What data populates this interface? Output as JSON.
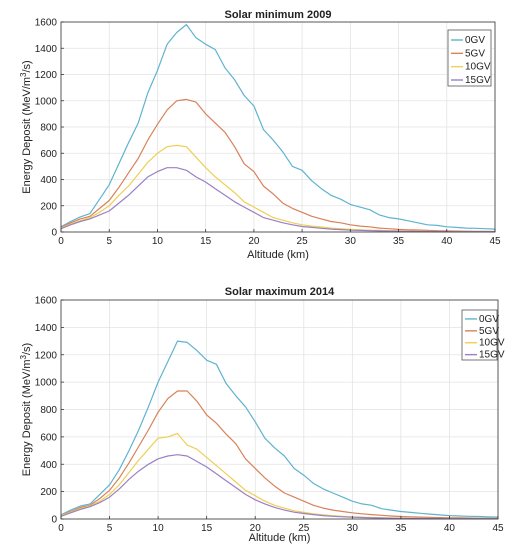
{
  "chart_data": [
    {
      "type": "line",
      "title": "Solar minimum 2009",
      "xlabel": "Altitude (km)",
      "ylabel": "Energy Deposit (MeV/m",
      "ylabel_sup": "3",
      "ylabel_tail": "/s)",
      "xlim": [
        0,
        45
      ],
      "ylim": [
        0,
        1600
      ],
      "xticks": [
        0,
        5,
        10,
        15,
        20,
        25,
        30,
        35,
        40,
        45
      ],
      "yticks": [
        0,
        200,
        400,
        600,
        800,
        1000,
        1200,
        1400,
        1600
      ],
      "grid": true,
      "legend_position": "top-right",
      "x": [
        0,
        1,
        2,
        3,
        4,
        5,
        6,
        7,
        8,
        9,
        10,
        11,
        12,
        13,
        14,
        15,
        16,
        17,
        18,
        19,
        20,
        21,
        22,
        23,
        24,
        25,
        26,
        27,
        28,
        29,
        30,
        31,
        32,
        33,
        34,
        35,
        36,
        37,
        38,
        39,
        40,
        41,
        42,
        43,
        44,
        45
      ],
      "series": [
        {
          "name": "0GV",
          "color": "#5fb3cf",
          "values": [
            40,
            80,
            115,
            140,
            250,
            360,
            520,
            680,
            830,
            1060,
            1230,
            1430,
            1520,
            1580,
            1480,
            1430,
            1390,
            1250,
            1160,
            1040,
            960,
            780,
            700,
            610,
            500,
            470,
            390,
            330,
            280,
            250,
            210,
            190,
            170,
            130,
            110,
            100,
            85,
            70,
            55,
            50,
            40,
            35,
            30,
            28,
            25,
            22
          ]
        },
        {
          "name": "5GV",
          "color": "#d8825a",
          "values": [
            35,
            70,
            100,
            120,
            180,
            240,
            340,
            450,
            560,
            700,
            820,
            930,
            1000,
            1010,
            990,
            900,
            830,
            760,
            650,
            520,
            460,
            350,
            290,
            220,
            180,
            150,
            120,
            100,
            80,
            70,
            55,
            45,
            40,
            30,
            25,
            20,
            17,
            15,
            12,
            10,
            8,
            7,
            6,
            5,
            5,
            4
          ]
        },
        {
          "name": "10GV",
          "color": "#efcf54",
          "values": [
            30,
            60,
            85,
            110,
            150,
            200,
            280,
            350,
            440,
            530,
            600,
            650,
            660,
            650,
            570,
            490,
            420,
            360,
            300,
            230,
            190,
            150,
            110,
            90,
            70,
            55,
            45,
            38,
            30,
            25,
            20,
            17,
            14,
            12,
            10,
            8,
            7,
            6,
            5,
            4,
            4,
            3,
            3,
            3,
            2,
            2
          ]
        },
        {
          "name": "15GV",
          "color": "#9a80c4",
          "values": [
            25,
            55,
            80,
            100,
            130,
            160,
            220,
            280,
            350,
            420,
            460,
            490,
            490,
            470,
            420,
            380,
            330,
            280,
            230,
            190,
            150,
            110,
            90,
            70,
            55,
            42,
            35,
            28,
            22,
            18,
            14,
            12,
            10,
            8,
            7,
            6,
            5,
            4,
            4,
            3,
            3,
            2,
            2,
            2,
            2,
            2
          ]
        }
      ]
    },
    {
      "type": "line",
      "title": "Solar maximum 2014",
      "xlabel": "Altitude (km)",
      "ylabel": "Energy Deposit (MeV/m",
      "ylabel_sup": "3",
      "ylabel_tail": "/s)",
      "xlim": [
        0,
        45
      ],
      "ylim": [
        0,
        1600
      ],
      "xticks": [
        0,
        5,
        10,
        15,
        20,
        25,
        30,
        35,
        40,
        45
      ],
      "yticks": [
        0,
        200,
        400,
        600,
        800,
        1000,
        1200,
        1400,
        1600
      ],
      "grid": true,
      "legend_position": "top-right",
      "x": [
        0,
        1,
        2,
        3,
        4,
        5,
        6,
        7,
        8,
        9,
        10,
        11,
        12,
        13,
        14,
        15,
        16,
        17,
        18,
        19,
        20,
        21,
        22,
        23,
        24,
        25,
        26,
        27,
        28,
        29,
        30,
        31,
        32,
        33,
        34,
        35,
        36,
        37,
        38,
        39,
        40,
        41,
        42,
        43,
        44,
        45
      ],
      "series": [
        {
          "name": "0GV",
          "color": "#5fb3cf",
          "values": [
            30,
            65,
            95,
            110,
            180,
            250,
            360,
            500,
            650,
            820,
            1000,
            1150,
            1300,
            1290,
            1230,
            1160,
            1130,
            990,
            900,
            820,
            710,
            590,
            520,
            460,
            370,
            320,
            260,
            220,
            190,
            160,
            130,
            110,
            100,
            75,
            65,
            55,
            48,
            42,
            36,
            30,
            25,
            22,
            20,
            18,
            15,
            14
          ]
        },
        {
          "name": "5GV",
          "color": "#d8825a",
          "values": [
            28,
            55,
            85,
            100,
            150,
            210,
            300,
            410,
            530,
            650,
            780,
            880,
            935,
            935,
            860,
            760,
            700,
            620,
            550,
            440,
            370,
            300,
            240,
            190,
            160,
            130,
            100,
            80,
            65,
            55,
            45,
            38,
            32,
            27,
            22,
            18,
            16,
            14,
            12,
            10,
            9,
            8,
            7,
            6,
            5,
            5
          ]
        },
        {
          "name": "10GV",
          "color": "#efcf54",
          "values": [
            25,
            50,
            75,
            95,
            130,
            180,
            250,
            340,
            430,
            510,
            590,
            600,
            625,
            540,
            510,
            450,
            390,
            330,
            270,
            210,
            170,
            130,
            100,
            80,
            60,
            48,
            38,
            30,
            24,
            20,
            16,
            13,
            11,
            9,
            7,
            6,
            5,
            4,
            4,
            3,
            3,
            3,
            2,
            2,
            2,
            2
          ]
        },
        {
          "name": "15GV",
          "color": "#9a80c4",
          "values": [
            20,
            45,
            70,
            90,
            120,
            160,
            220,
            290,
            350,
            400,
            440,
            460,
            470,
            460,
            420,
            380,
            330,
            280,
            230,
            180,
            140,
            110,
            85,
            65,
            50,
            40,
            32,
            25,
            20,
            16,
            13,
            11,
            9,
            7,
            6,
            5,
            4,
            4,
            3,
            3,
            2,
            2,
            2,
            2,
            2,
            2
          ]
        }
      ]
    }
  ]
}
